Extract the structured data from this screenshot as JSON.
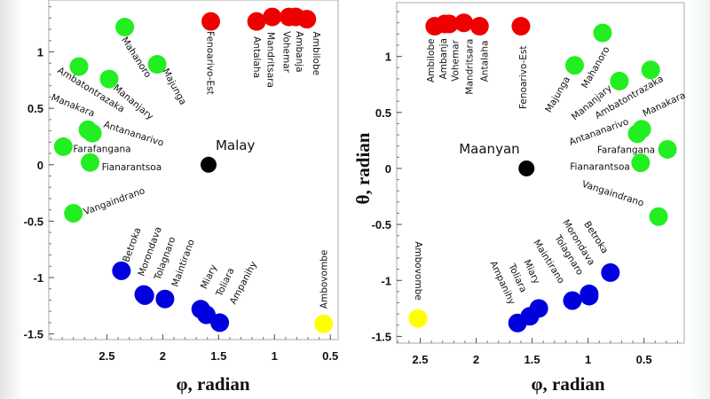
{
  "colors": {
    "north": "#ee0000",
    "east_central": "#22ee22",
    "south": "#0000dd",
    "reference": "#000000",
    "ambovombe": "#ffff00"
  },
  "chart_data": [
    {
      "type": "scatter",
      "title": "",
      "xlabel": "φ, radian",
      "ylabel": "",
      "xlim": [
        3.02,
        0.43
      ],
      "ylim": [
        -1.55,
        1.46
      ],
      "x_reversed": true,
      "xticks": [
        "2.5",
        "2",
        "1.5",
        "1",
        "0.5"
      ],
      "xtick_values": [
        2.5,
        2,
        1.5,
        1,
        0.5
      ],
      "yticks": [
        "1",
        "0.5",
        "0",
        "-0.5",
        "-1",
        "-1.5"
      ],
      "ytick_values": [
        1,
        0.5,
        0,
        -0.5,
        -1,
        -1.5
      ],
      "reference_label": "Malay",
      "points": [
        {
          "name": "Mahanoro",
          "x": 2.34,
          "y": 1.22,
          "group": "east_central"
        },
        {
          "name": "Ambatontrazaka",
          "x": 2.75,
          "y": 0.87,
          "group": "east_central"
        },
        {
          "name": "Mananjary",
          "x": 2.48,
          "y": 0.76,
          "group": "east_central"
        },
        {
          "name": "Majunga",
          "x": 2.05,
          "y": 0.89,
          "group": "east_central"
        },
        {
          "name": "Manakara",
          "x": 2.67,
          "y": 0.31,
          "group": "east_central"
        },
        {
          "name": "Antananarivo",
          "x": 2.63,
          "y": 0.28,
          "group": "east_central"
        },
        {
          "name": "Farafangana",
          "x": 2.89,
          "y": 0.16,
          "group": "east_central"
        },
        {
          "name": "Fianarantsoa",
          "x": 2.65,
          "y": 0.02,
          "group": "east_central"
        },
        {
          "name": "Vangaindrano",
          "x": 2.8,
          "y": -0.43,
          "group": "east_central"
        },
        {
          "name": "Fenoarivo-Est",
          "x": 1.57,
          "y": 1.27,
          "group": "north"
        },
        {
          "name": "Antalaha",
          "x": 1.16,
          "y": 1.27,
          "group": "north"
        },
        {
          "name": "Mandritsara",
          "x": 1.02,
          "y": 1.31,
          "group": "north"
        },
        {
          "name": "Vohemar",
          "x": 0.87,
          "y": 1.31,
          "group": "north"
        },
        {
          "name": "Ambanja",
          "x": 0.81,
          "y": 1.31,
          "group": "north"
        },
        {
          "name": "Ambilobe",
          "x": 0.71,
          "y": 1.29,
          "group": "north"
        },
        {
          "name": "Betroka",
          "x": 2.37,
          "y": -0.94,
          "group": "south"
        },
        {
          "name": "Morondava",
          "x": 2.17,
          "y": -1.15,
          "group": "south"
        },
        {
          "name": "Tolagnaro",
          "x": 2.16,
          "y": -1.16,
          "group": "south"
        },
        {
          "name": "Maintirano",
          "x": 1.98,
          "y": -1.19,
          "group": "south"
        },
        {
          "name": "Miary",
          "x": 1.66,
          "y": -1.28,
          "group": "south"
        },
        {
          "name": "Toliara",
          "x": 1.61,
          "y": -1.33,
          "group": "south"
        },
        {
          "name": "Ampanihy",
          "x": 1.49,
          "y": -1.4,
          "group": "south"
        },
        {
          "name": "Ambovombe",
          "x": 0.56,
          "y": -1.41,
          "group": "ambovombe"
        },
        {
          "name": "Malay",
          "x": 1.59,
          "y": 0.0,
          "group": "reference"
        }
      ]
    },
    {
      "type": "scatter",
      "title": "",
      "xlabel": "φ, radian",
      "ylabel": "θ, radian",
      "xlim": [
        2.71,
        0.14
      ],
      "ylim": [
        -1.56,
        1.48
      ],
      "x_reversed": true,
      "xticks": [
        "2.5",
        "2",
        "1.5",
        "1",
        "0.5"
      ],
      "xtick_values": [
        2.5,
        2,
        1.5,
        1,
        0.5
      ],
      "yticks": [
        "1",
        "0.5",
        "0",
        "-0.5",
        "-1",
        "-1.5"
      ],
      "ytick_values": [
        1,
        0.5,
        0,
        -0.5,
        -1,
        -1.5
      ],
      "reference_label": "Maanyan",
      "points": [
        {
          "name": "Ambilobe",
          "x": 2.37,
          "y": 1.27,
          "group": "north"
        },
        {
          "name": "Ambanja",
          "x": 2.28,
          "y": 1.29,
          "group": "north"
        },
        {
          "name": "Vohemar",
          "x": 2.24,
          "y": 1.29,
          "group": "north"
        },
        {
          "name": "Mandritsara",
          "x": 2.11,
          "y": 1.3,
          "group": "north"
        },
        {
          "name": "Antalaha",
          "x": 1.97,
          "y": 1.27,
          "group": "north"
        },
        {
          "name": "Fenoarivo-Est",
          "x": 1.6,
          "y": 1.27,
          "group": "north"
        },
        {
          "name": "Mahanoro",
          "x": 0.87,
          "y": 1.21,
          "group": "east_central"
        },
        {
          "name": "Majunga",
          "x": 1.12,
          "y": 0.92,
          "group": "east_central"
        },
        {
          "name": "Mananjary",
          "x": 0.72,
          "y": 0.78,
          "group": "east_central"
        },
        {
          "name": "Ambatontrazaka",
          "x": 0.44,
          "y": 0.88,
          "group": "east_central"
        },
        {
          "name": "Manakara",
          "x": 0.52,
          "y": 0.35,
          "group": "east_central"
        },
        {
          "name": "Antananarivo",
          "x": 0.56,
          "y": 0.31,
          "group": "east_central"
        },
        {
          "name": "Farafangana",
          "x": 0.29,
          "y": 0.17,
          "group": "east_central"
        },
        {
          "name": "Fianarantsoa",
          "x": 0.53,
          "y": 0.05,
          "group": "east_central"
        },
        {
          "name": "Vangaindrano",
          "x": 0.37,
          "y": -0.43,
          "group": "east_central"
        },
        {
          "name": "Betroka",
          "x": 0.8,
          "y": -0.93,
          "group": "south"
        },
        {
          "name": "Morondava",
          "x": 0.99,
          "y": -1.12,
          "group": "south"
        },
        {
          "name": "Tolagnaro",
          "x": 0.99,
          "y": -1.14,
          "group": "south"
        },
        {
          "name": "Maintirano",
          "x": 1.14,
          "y": -1.18,
          "group": "south"
        },
        {
          "name": "Miary",
          "x": 1.44,
          "y": -1.25,
          "group": "south"
        },
        {
          "name": "Toliara",
          "x": 1.52,
          "y": -1.32,
          "group": "south"
        },
        {
          "name": "Ampanihy",
          "x": 1.63,
          "y": -1.38,
          "group": "south"
        },
        {
          "name": "Ambovombe",
          "x": 2.52,
          "y": -1.34,
          "group": "ambovombe"
        },
        {
          "name": "Maanyan",
          "x": 1.55,
          "y": 0.0,
          "group": "reference"
        }
      ]
    }
  ]
}
